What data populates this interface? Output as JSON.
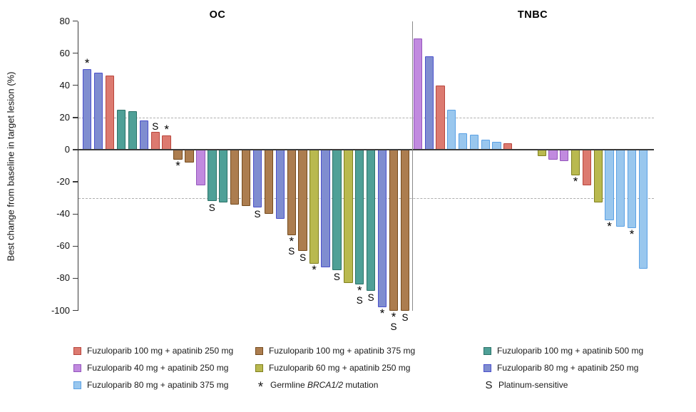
{
  "chart_data": {
    "type": "bar",
    "subtype": "waterfall",
    "title_left": "OC",
    "title_right": "TNBC",
    "ylabel": "Best change from baseline in target lesion (%)",
    "ylim": [
      -100,
      80
    ],
    "yticks": [
      "80",
      "60",
      "40",
      "20",
      "0",
      "-20",
      "-40",
      "-60",
      "-80",
      "-100"
    ],
    "reference_lines": [
      20,
      -30
    ],
    "grid": "dashed-reference-only",
    "legend_position": "bottom",
    "groups": {
      "fz100_ap250": {
        "label": "Fuzuloparib 100 mg + apatinib 250 mg",
        "fill": "#DC7A70",
        "border": "#B8453C"
      },
      "fz100_ap375": {
        "label": "Fuzuloparib 100 mg + apatinib 375 mg",
        "fill": "#AC7D4F",
        "border": "#744A1D"
      },
      "fz100_ap500": {
        "label": "Fuzuloparib 100 mg + apatinib 500 mg",
        "fill": "#4FA097",
        "border": "#2B7268"
      },
      "fz40_ap250": {
        "label": "Fuzuloparib 40 mg + apatinib 250 mg",
        "fill": "#C18ADF",
        "border": "#9455BC"
      },
      "fz60_ap250": {
        "label": "Fuzuloparib 60 mg + apatinib 250 mg",
        "fill": "#B9B94F",
        "border": "#7F7F1D"
      },
      "fz80_ap250": {
        "label": "Fuzuloparib 80 mg + apatinib 250 mg",
        "fill": "#7F8DD0",
        "border": "#4A50CC"
      },
      "fz80_ap375": {
        "label": "Fuzuloparib 80 mg + apatinib 375 mg",
        "fill": "#99C7EE",
        "border": "#5BA1E4"
      }
    },
    "panels": [
      {
        "title": "OC",
        "bars": [
          {
            "g": "fz80_ap250",
            "v": 50,
            "m": [
              "*"
            ]
          },
          {
            "g": "fz80_ap250",
            "v": 48
          },
          {
            "g": "fz100_ap250",
            "v": 46
          },
          {
            "g": "fz100_ap500",
            "v": 25
          },
          {
            "g": "fz100_ap500",
            "v": 24
          },
          {
            "g": "fz80_ap250",
            "v": 18
          },
          {
            "g": "fz100_ap250",
            "v": 11,
            "m": [
              "S"
            ]
          },
          {
            "g": "fz100_ap250",
            "v": 9,
            "m": [
              "*"
            ]
          },
          {
            "g": "fz100_ap375",
            "v": -6,
            "m": [
              "*"
            ]
          },
          {
            "g": "fz100_ap375",
            "v": -8
          },
          {
            "g": "fz40_ap250",
            "v": -22
          },
          {
            "g": "fz100_ap500",
            "v": -32,
            "m": [
              "S"
            ]
          },
          {
            "g": "fz100_ap500",
            "v": -33
          },
          {
            "g": "fz100_ap375",
            "v": -34
          },
          {
            "g": "fz100_ap375",
            "v": -35
          },
          {
            "g": "fz80_ap250",
            "v": -36,
            "m": [
              "S"
            ]
          },
          {
            "g": "fz100_ap375",
            "v": -40
          },
          {
            "g": "fz80_ap250",
            "v": -43
          },
          {
            "g": "fz100_ap375",
            "v": -53,
            "m": [
              "*",
              "S"
            ]
          },
          {
            "g": "fz100_ap375",
            "v": -63,
            "m": [
              "S"
            ]
          },
          {
            "g": "fz60_ap250",
            "v": -71,
            "m": [
              "*"
            ]
          },
          {
            "g": "fz80_ap250",
            "v": -73
          },
          {
            "g": "fz100_ap500",
            "v": -75,
            "m": [
              "S"
            ]
          },
          {
            "g": "fz60_ap250",
            "v": -83
          },
          {
            "g": "fz100_ap500",
            "v": -84,
            "m": [
              "*",
              "S"
            ]
          },
          {
            "g": "fz100_ap500",
            "v": -88,
            "m": [
              "S"
            ]
          },
          {
            "g": "fz80_ap250",
            "v": -98,
            "m": [
              "*"
            ]
          },
          {
            "g": "fz100_ap375",
            "v": -100,
            "m": [
              "*",
              "S"
            ]
          },
          {
            "g": "fz100_ap375",
            "v": -100,
            "m": [
              "S"
            ]
          }
        ]
      },
      {
        "title": "TNBC",
        "bars": [
          {
            "g": "fz40_ap250",
            "v": 69
          },
          {
            "g": "fz80_ap250",
            "v": 58
          },
          {
            "g": "fz100_ap250",
            "v": 40
          },
          {
            "g": "fz80_ap375",
            "v": 25
          },
          {
            "g": "fz80_ap375",
            "v": 10
          },
          {
            "g": "fz80_ap375",
            "v": 9.5
          },
          {
            "g": "fz80_ap375",
            "v": 6
          },
          {
            "g": "fz80_ap375",
            "v": 5
          },
          {
            "g": "fz100_ap250",
            "v": 4
          },
          {
            "g": "fz60_ap250",
            "v": -4,
            "slot": 11
          },
          {
            "g": "fz40_ap250",
            "v": -6
          },
          {
            "g": "fz40_ap250",
            "v": -7
          },
          {
            "g": "fz60_ap250",
            "v": -16,
            "m": [
              "*"
            ]
          },
          {
            "g": "fz100_ap250",
            "v": -22
          },
          {
            "g": "fz60_ap250",
            "v": -33
          },
          {
            "g": "fz80_ap375",
            "v": -44,
            "m": [
              "*"
            ]
          },
          {
            "g": "fz80_ap375",
            "v": -48
          },
          {
            "g": "fz80_ap375",
            "v": -49,
            "m": [
              "*"
            ]
          },
          {
            "g": "fz80_ap375",
            "v": -74
          }
        ]
      }
    ],
    "annotations": {
      "star_symbol": "*",
      "star_meaning": "Germline BRCA1/2 mutation",
      "s_symbol": "S",
      "s_meaning": "Platinum-sensitive"
    }
  },
  "legend": {
    "columns": [
      {
        "items": [
          {
            "type": "swatch",
            "group": "fz100_ap250"
          },
          {
            "type": "swatch",
            "group": "fz40_ap250"
          },
          {
            "type": "swatch",
            "group": "fz80_ap375"
          }
        ]
      },
      {
        "items": [
          {
            "type": "swatch",
            "group": "fz100_ap375"
          },
          {
            "type": "swatch",
            "group": "fz60_ap250"
          },
          {
            "type": "symbol",
            "symbol": "*",
            "parts": [
              {
                "t": "Germline "
              },
              {
                "t": "BRCA1/2",
                "i": true
              },
              {
                "t": " mutation"
              }
            ]
          }
        ]
      },
      {
        "items": [
          {
            "type": "swatch",
            "group": "fz100_ap500"
          },
          {
            "type": "swatch",
            "group": "fz80_ap250"
          },
          {
            "type": "symbol",
            "symbol": "S",
            "parts": [
              {
                "t": "Platinum-sensitive"
              }
            ]
          }
        ]
      }
    ]
  }
}
